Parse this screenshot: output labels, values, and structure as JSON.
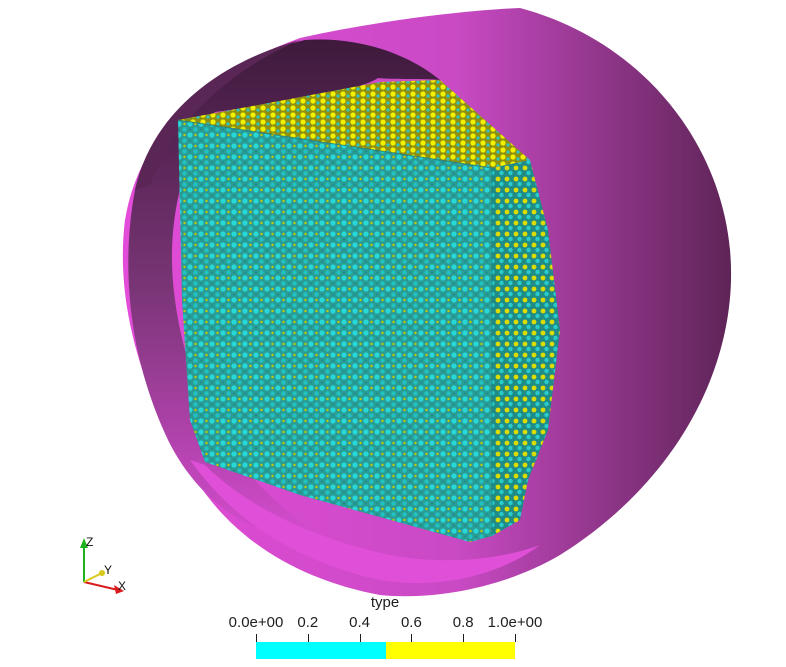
{
  "legend": {
    "title": "type",
    "ticks": [
      "0.0e+00",
      "0.2",
      "0.4",
      "0.6",
      "0.8",
      "1.0e+00"
    ],
    "range": [
      0,
      1
    ],
    "colors": {
      "low": "#00ffff",
      "high": "#ffff00"
    }
  },
  "axes": {
    "x": "X",
    "y": "Y",
    "z": "Z"
  },
  "scene": {
    "cylinder_color": "#d94fd4",
    "cylinder_inner_color": "#4a1f4a",
    "atom_colors": [
      "#1fc8c8",
      "#d6d600"
    ]
  }
}
